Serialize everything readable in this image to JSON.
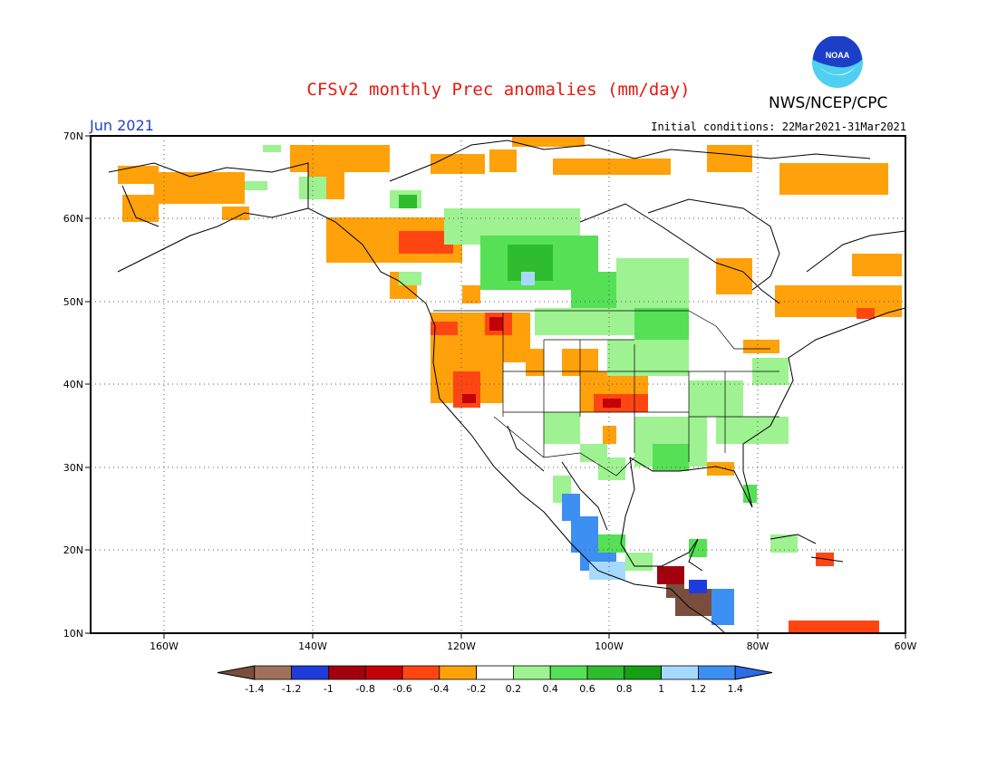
{
  "header": {
    "title": "CFSv2 monthly Prec anomalies (mm/day)",
    "organization": "NWS/NCEP/CPC",
    "logo_text": "NOAA",
    "month": "Jun 2021",
    "initial_conditions": "Initial conditions: 22Mar2021-31Mar2021"
  },
  "map": {
    "lon_ticks": [
      "160W",
      "140W",
      "120W",
      "100W",
      "80W",
      "60W"
    ],
    "lat_ticks": [
      "70N",
      "60N",
      "50N",
      "40N",
      "30N",
      "20N",
      "10N"
    ]
  },
  "legend": {
    "labels": [
      "-1.4",
      "-1.2",
      "-1",
      "-0.8",
      "-0.6",
      "-0.4",
      "-0.2",
      "0.2",
      "0.4",
      "0.6",
      "0.8",
      "1",
      "1.2",
      "1.4"
    ],
    "colors": [
      "#7a4e3c",
      "#a0715a",
      "#1e3cdb",
      "#a3000f",
      "#c4000b",
      "#ff4612",
      "#ffa10a",
      "#ffffff",
      "#9ef291",
      "#55e055",
      "#2ebd2e",
      "#15a015",
      "#a6d9ff",
      "#3d8ff2",
      "#2e6be6"
    ]
  },
  "colors": {
    "title": "#e8190f",
    "month": "#1f3fd6",
    "noaa_blue": "#1c3fc8",
    "noaa_cyan": "#4fd0f0"
  }
}
